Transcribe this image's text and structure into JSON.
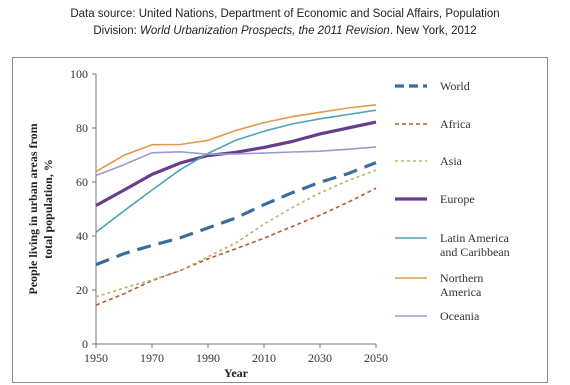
{
  "source": {
    "line1": "Data source: United Nations, Department of Economic and Social Affairs, Population",
    "line2_prefix": "Division: ",
    "line2_italic": "World Urbanization Prospects, the 2011 Revision",
    "line2_suffix": ". New York, 2012"
  },
  "chart_data": {
    "type": "line",
    "title": "",
    "xlabel": "Year",
    "ylabel_lines": [
      "People living in urban areas from",
      "total population, %"
    ],
    "x": [
      1950,
      1960,
      1970,
      1980,
      1990,
      2000,
      2010,
      2020,
      2030,
      2040,
      2050
    ],
    "x_ticks": [
      1950,
      1970,
      1990,
      2010,
      2030,
      2050
    ],
    "y_ticks": [
      0,
      20,
      40,
      60,
      80,
      100
    ],
    "xlim": [
      1950,
      2050
    ],
    "ylim": [
      0,
      100
    ],
    "grid": false,
    "legend_position": "right",
    "series": [
      {
        "name": "World",
        "label_lines": [
          "World"
        ],
        "color": "#3b6e9c",
        "dash": "14,8",
        "width": 3.2,
        "values": [
          29.4,
          33.5,
          36.5,
          39.3,
          43.0,
          46.7,
          51.6,
          56.0,
          59.9,
          63.1,
          67.2
        ]
      },
      {
        "name": "Africa",
        "label_lines": [
          "Africa"
        ],
        "color": "#b55a3a",
        "dash": "4,3",
        "width": 1.6,
        "values": [
          14.4,
          18.6,
          23.5,
          27.2,
          31.5,
          35.3,
          39.2,
          43.5,
          47.7,
          52.5,
          57.7
        ]
      },
      {
        "name": "Asia",
        "label_lines": [
          "Asia"
        ],
        "color": "#b5b56a",
        "dash": "3,3",
        "width": 1.6,
        "values": [
          17.5,
          20.7,
          23.7,
          27.1,
          32.3,
          37.5,
          44.4,
          50.5,
          56.0,
          60.5,
          64.4
        ]
      },
      {
        "name": "Europe",
        "label_lines": [
          "Europe"
        ],
        "color": "#6a3d8c",
        "dash": "",
        "width": 3.2,
        "values": [
          51.3,
          57.0,
          62.8,
          67.0,
          69.8,
          71.0,
          72.8,
          75.0,
          77.8,
          80.0,
          82.2
        ]
      },
      {
        "name": "Latin America and Caribbean",
        "label_lines": [
          "Latin America",
          "and Caribbean"
        ],
        "color": "#4da3b8",
        "dash": "",
        "width": 1.6,
        "values": [
          41.4,
          49.3,
          57.0,
          64.5,
          70.6,
          75.5,
          78.8,
          81.5,
          83.4,
          85.0,
          86.6
        ]
      },
      {
        "name": "Northern America",
        "label_lines": [
          "Northern",
          "America"
        ],
        "color": "#e39a4a",
        "dash": "",
        "width": 1.6,
        "values": [
          63.9,
          69.9,
          73.8,
          73.9,
          75.4,
          79.1,
          82.0,
          84.2,
          85.8,
          87.4,
          88.6
        ]
      },
      {
        "name": "Oceania",
        "label_lines": [
          "Oceania"
        ],
        "color": "#9a9ad0",
        "dash": "",
        "width": 1.6,
        "values": [
          62.4,
          66.4,
          70.8,
          71.2,
          70.3,
          70.4,
          70.7,
          71.1,
          71.4,
          72.1,
          73.0
        ]
      }
    ]
  }
}
